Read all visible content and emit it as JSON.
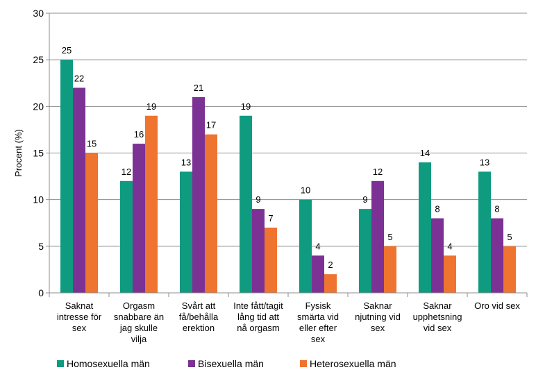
{
  "chart_data": {
    "type": "bar",
    "title": "",
    "xlabel": "",
    "ylabel": "Procent (%)",
    "ylim": [
      0,
      30
    ],
    "yticks": [
      0,
      5,
      10,
      15,
      20,
      25,
      30
    ],
    "grid": true,
    "legend": "bottom",
    "categories": [
      "Saknat intresse för sex",
      "Orgasm snabbare än jag skulle vilja",
      "Svårt att få/behålla erektion",
      "Inte fått/tagit lång tid att nå orgasm",
      "Fysisk smärta vid eller efter sex",
      "Saknar njutning vid sex",
      "Saknar upphetsning vid sex",
      "Oro vid sex"
    ],
    "category_lines": [
      [
        "Saknat",
        "intresse för",
        "sex"
      ],
      [
        "Orgasm",
        "snabbare än",
        "jag skulle",
        "vilja"
      ],
      [
        "Svårt att",
        "få/behålla",
        "erektion"
      ],
      [
        "Inte fått/tagit",
        "lång tid att",
        "nå orgasm"
      ],
      [
        "Fysisk",
        "smärta vid",
        "eller efter",
        "sex"
      ],
      [
        "Saknar",
        "njutning vid",
        "sex"
      ],
      [
        "Saknar",
        "upphetsning",
        "vid sex"
      ],
      [
        "Oro vid sex"
      ]
    ],
    "series": [
      {
        "name": "Homosexuella män",
        "color": "#0e9b7f",
        "values": [
          25,
          12,
          13,
          19,
          10,
          9,
          14,
          13
        ]
      },
      {
        "name": "Bisexuella män",
        "color": "#7b3294",
        "values": [
          22,
          16,
          21,
          9,
          4,
          12,
          8,
          8
        ]
      },
      {
        "name": "Heterosexuella män",
        "color": "#ee7430",
        "values": [
          15,
          19,
          17,
          7,
          2,
          5,
          4,
          5
        ]
      }
    ]
  }
}
